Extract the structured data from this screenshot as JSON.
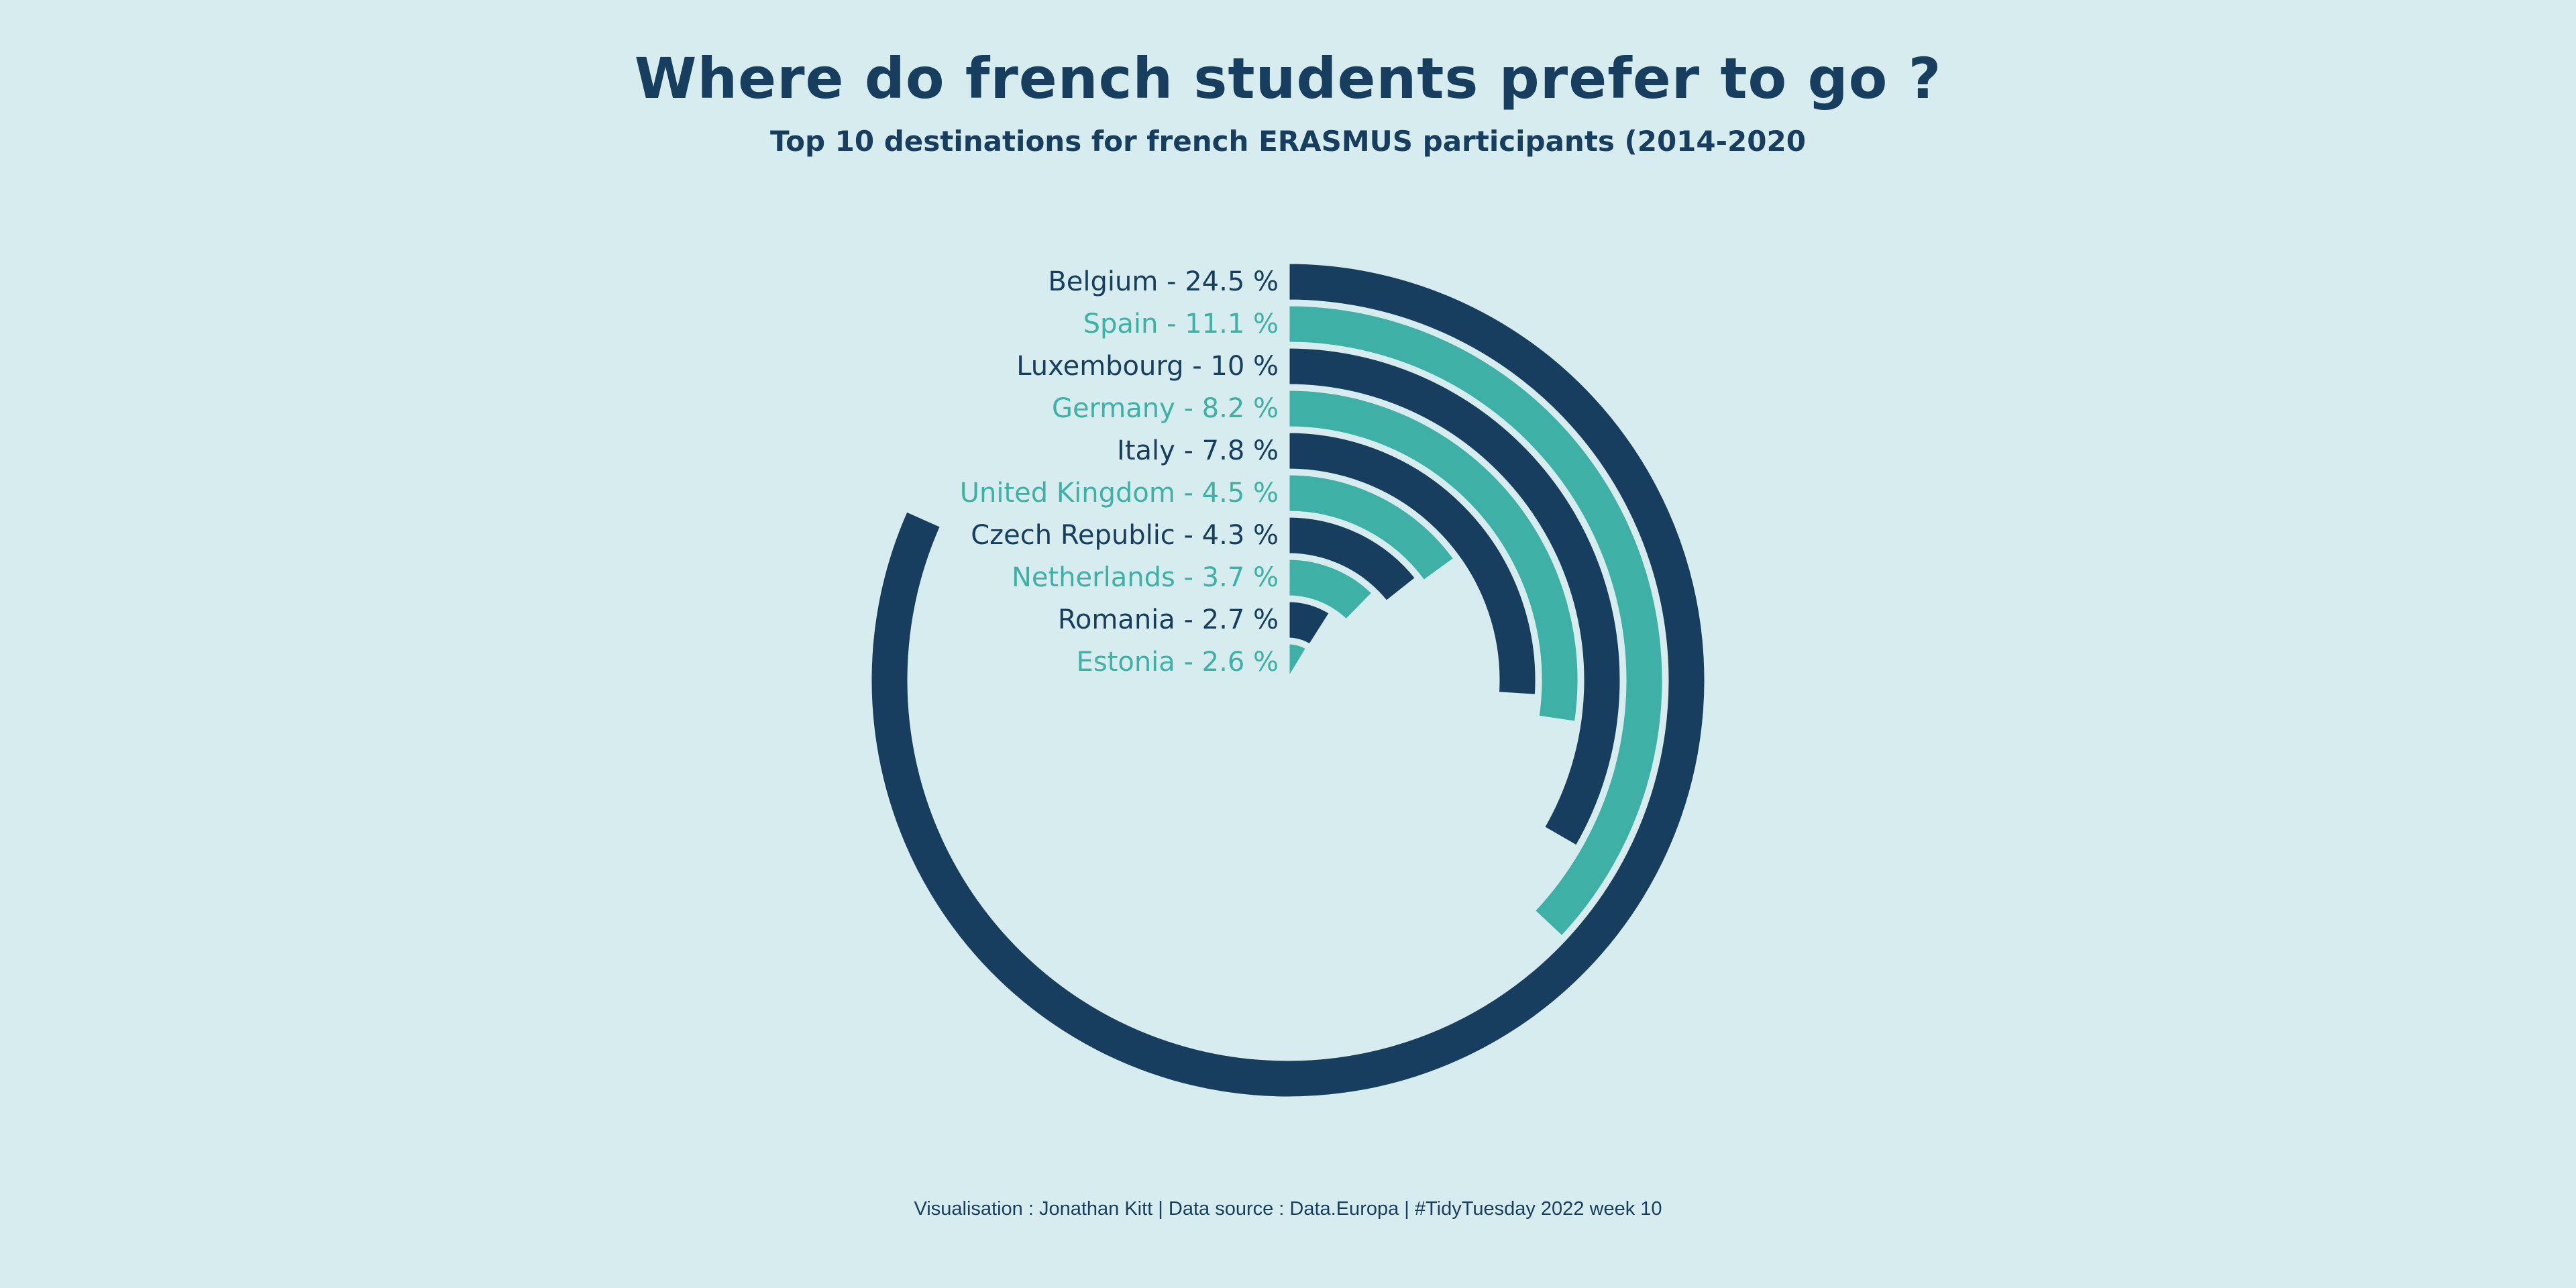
{
  "title": "Where do french students prefer to go ?",
  "subtitle": "Top 10 destinations for french ERASMUS participants (2014-2020",
  "caption": "Visualisation : Jonathan Kitt | Data source : Data.Europa | #TidyTuesday 2022 week 10",
  "colors": {
    "background": "#d6ecef",
    "dark": "#173d5f",
    "teal": "#3fb0a5"
  },
  "chart_data": {
    "type": "radial-bar",
    "max_value": 30,
    "series": [
      {
        "country": "Belgium",
        "value": 24.5,
        "label": "Belgium - 24.5 %",
        "color": "#173d5f"
      },
      {
        "country": "Spain",
        "value": 11.1,
        "label": "Spain - 11.1 %",
        "color": "#3fb0a5"
      },
      {
        "country": "Luxembourg",
        "value": 10,
        "label": "Luxembourg - 10 %",
        "color": "#173d5f"
      },
      {
        "country": "Germany",
        "value": 8.2,
        "label": "Germany - 8.2 %",
        "color": "#3fb0a5"
      },
      {
        "country": "Italy",
        "value": 7.8,
        "label": "Italy - 7.8 %",
        "color": "#173d5f"
      },
      {
        "country": "United Kingdom",
        "value": 4.5,
        "label": "United Kingdom - 4.5 %",
        "color": "#3fb0a5"
      },
      {
        "country": "Czech Republic",
        "value": 4.3,
        "label": "Czech Republic - 4.3 %",
        "color": "#173d5f"
      },
      {
        "country": "Netherlands",
        "value": 3.7,
        "label": "Netherlands - 3.7 %",
        "color": "#3fb0a5"
      },
      {
        "country": "Romania",
        "value": 2.7,
        "label": "Romania - 2.7 %",
        "color": "#173d5f"
      },
      {
        "country": "Estonia",
        "value": 2.6,
        "label": "Estonia - 2.6 %",
        "color": "#3fb0a5"
      }
    ]
  }
}
